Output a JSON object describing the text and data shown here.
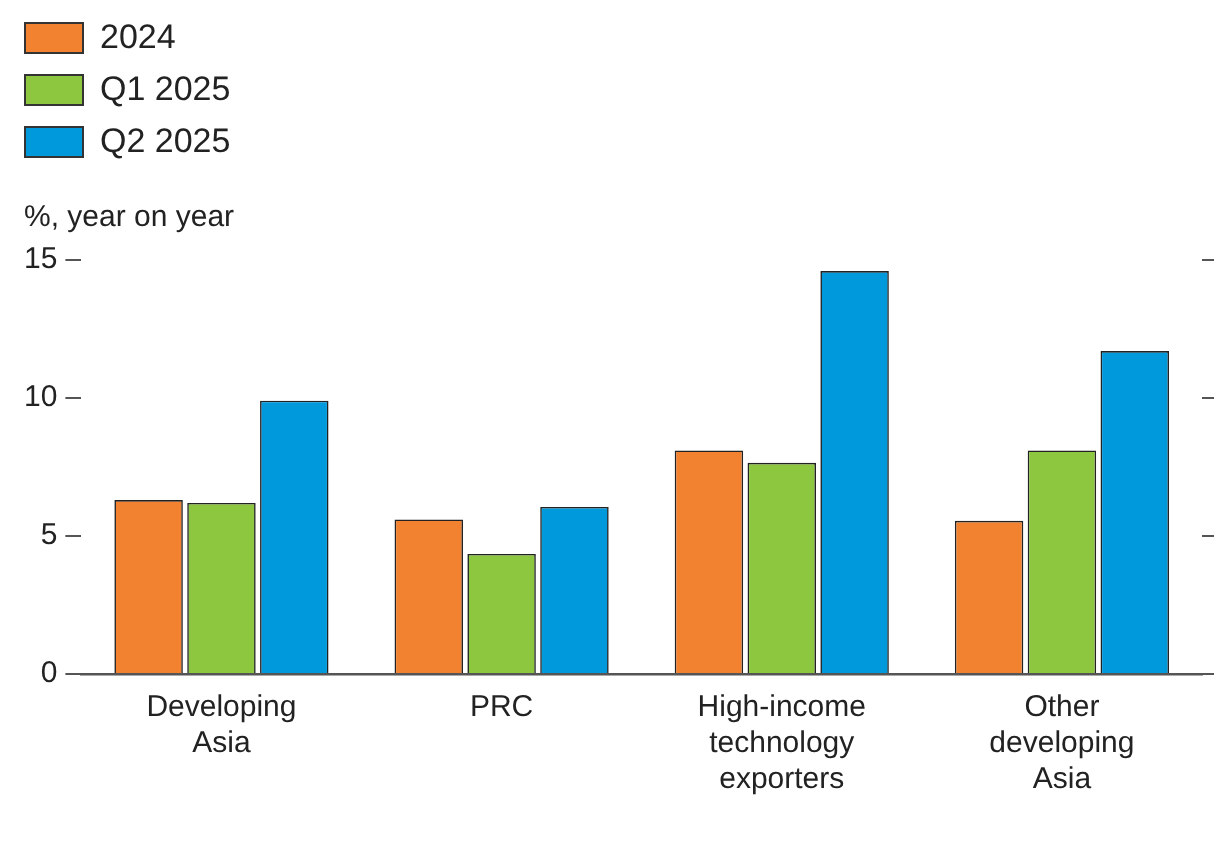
{
  "chart_data": {
    "type": "bar",
    "ylabel": "%, year on year",
    "categories": [
      "Developing Asia",
      "PRC",
      "High-income technology exporters",
      "Other developing Asia"
    ],
    "series": [
      {
        "name": "2024",
        "color": "#f28130",
        "values": [
          6.3,
          5.6,
          8.1,
          5.55
        ]
      },
      {
        "name": "Q1 2025",
        "color": "#8dc63f",
        "values": [
          6.2,
          4.35,
          7.65,
          8.1
        ]
      },
      {
        "name": "Q2 2025",
        "color": "#0099dc",
        "values": [
          9.9,
          6.05,
          14.6,
          11.7
        ]
      }
    ],
    "ylim": [
      0,
      15
    ],
    "yticks": [
      0,
      5,
      10,
      15
    ],
    "grid": false,
    "legend": "top left"
  }
}
